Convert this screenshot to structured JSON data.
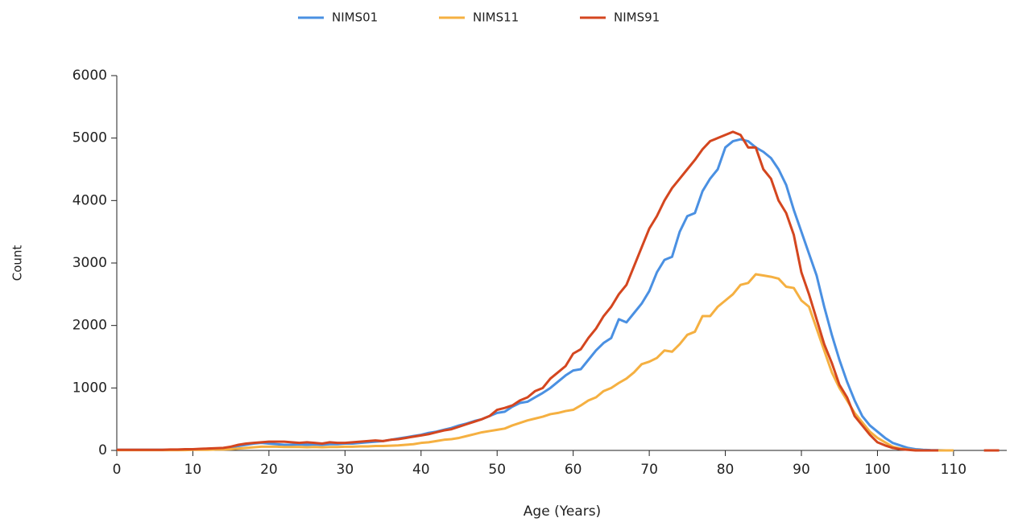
{
  "chart_data": {
    "type": "line",
    "x": [
      0,
      1,
      2,
      3,
      4,
      5,
      6,
      7,
      8,
      9,
      10,
      11,
      12,
      13,
      14,
      15,
      16,
      17,
      18,
      19,
      20,
      21,
      22,
      23,
      24,
      25,
      26,
      27,
      28,
      29,
      30,
      31,
      32,
      33,
      34,
      35,
      36,
      37,
      38,
      39,
      40,
      41,
      42,
      43,
      44,
      45,
      46,
      47,
      48,
      49,
      50,
      51,
      52,
      53,
      54,
      55,
      56,
      57,
      58,
      59,
      60,
      61,
      62,
      63,
      64,
      65,
      66,
      67,
      68,
      69,
      70,
      71,
      72,
      73,
      74,
      75,
      76,
      77,
      78,
      79,
      80,
      81,
      82,
      83,
      84,
      85,
      86,
      87,
      88,
      89,
      90,
      91,
      92,
      93,
      94,
      95,
      96,
      97,
      98,
      99,
      100,
      101,
      102,
      103,
      104,
      105,
      106,
      107,
      108,
      109,
      110,
      111,
      112,
      113,
      114,
      115,
      116
    ],
    "series": [
      {
        "name": "NIMS01",
        "color": "#4a90e2",
        "values": [
          10,
          10,
          10,
          10,
          10,
          10,
          10,
          10,
          10,
          15,
          20,
          20,
          25,
          30,
          35,
          50,
          70,
          90,
          110,
          120,
          110,
          100,
          90,
          90,
          95,
          90,
          95,
          90,
          100,
          100,
          110,
          110,
          120,
          130,
          140,
          150,
          170,
          190,
          210,
          230,
          250,
          280,
          300,
          330,
          360,
          400,
          430,
          470,
          500,
          550,
          600,
          620,
          700,
          760,
          780,
          850,
          920,
          1000,
          1100,
          1200,
          1280,
          1300,
          1450,
          1600,
          1720,
          1800,
          2100,
          2050,
          2200,
          2350,
          2550,
          2850,
          3050,
          3100,
          3500,
          3750,
          3800,
          4150,
          4350,
          4500,
          4850,
          4950,
          4980,
          4950,
          4850,
          4780,
          4680,
          4500,
          4250,
          3850,
          3500,
          3150,
          2800,
          2300,
          1850,
          1450,
          1100,
          800,
          550,
          400,
          300,
          200,
          120,
          80,
          40,
          20,
          10,
          5,
          3,
          0,
          0,
          null,
          null,
          null,
          null,
          null,
          null
        ]
      },
      {
        "name": "NIMS11",
        "color": "#f5b041",
        "values": [
          5,
          5,
          5,
          5,
          5,
          5,
          5,
          5,
          5,
          5,
          10,
          10,
          10,
          15,
          15,
          20,
          30,
          40,
          50,
          60,
          60,
          60,
          55,
          55,
          55,
          50,
          55,
          50,
          55,
          55,
          60,
          60,
          65,
          65,
          70,
          70,
          75,
          80,
          90,
          100,
          120,
          130,
          150,
          170,
          180,
          200,
          230,
          260,
          290,
          310,
          330,
          350,
          400,
          440,
          480,
          510,
          540,
          580,
          600,
          630,
          650,
          720,
          800,
          850,
          950,
          1000,
          1080,
          1150,
          1250,
          1380,
          1420,
          1480,
          1600,
          1580,
          1700,
          1850,
          1900,
          2150,
          2150,
          2300,
          2400,
          2500,
          2650,
          2680,
          2820,
          2800,
          2780,
          2750,
          2620,
          2600,
          2400,
          2300,
          1950,
          1600,
          1250,
          1000,
          800,
          600,
          450,
          300,
          200,
          130,
          60,
          30,
          15,
          5,
          0,
          0,
          0,
          0,
          0,
          null,
          null,
          null,
          null,
          null,
          null
        ]
      },
      {
        "name": "NIMS91",
        "color": "#d4461f",
        "values": [
          10,
          10,
          10,
          10,
          10,
          10,
          10,
          15,
          15,
          20,
          20,
          25,
          30,
          35,
          40,
          60,
          90,
          110,
          120,
          130,
          140,
          140,
          140,
          130,
          120,
          130,
          120,
          110,
          130,
          120,
          120,
          130,
          140,
          150,
          160,
          150,
          170,
          180,
          200,
          220,
          240,
          260,
          290,
          320,
          340,
          380,
          420,
          460,
          500,
          550,
          650,
          680,
          720,
          800,
          850,
          950,
          1000,
          1150,
          1250,
          1350,
          1550,
          1620,
          1800,
          1950,
          2150,
          2300,
          2500,
          2650,
          2950,
          3250,
          3550,
          3750,
          4000,
          4200,
          4350,
          4500,
          4650,
          4820,
          4950,
          5000,
          5050,
          5100,
          5050,
          4850,
          4850,
          4500,
          4350,
          4000,
          3800,
          3450,
          2850,
          2500,
          2100,
          1700,
          1400,
          1050,
          850,
          550,
          400,
          250,
          130,
          80,
          40,
          20,
          10,
          0,
          0,
          0,
          0,
          null,
          null,
          null,
          null,
          null,
          0,
          0,
          0
        ]
      }
    ],
    "x_label": "Age (Years)",
    "y_label": "Count",
    "xlim": [
      0,
      117
    ],
    "ylim": [
      0,
      6000
    ],
    "xticks": [
      0,
      10,
      20,
      30,
      40,
      50,
      60,
      70,
      80,
      90,
      100,
      110
    ],
    "yticks": [
      0,
      1000,
      2000,
      3000,
      4000,
      5000,
      6000
    ],
    "legend": "top"
  }
}
